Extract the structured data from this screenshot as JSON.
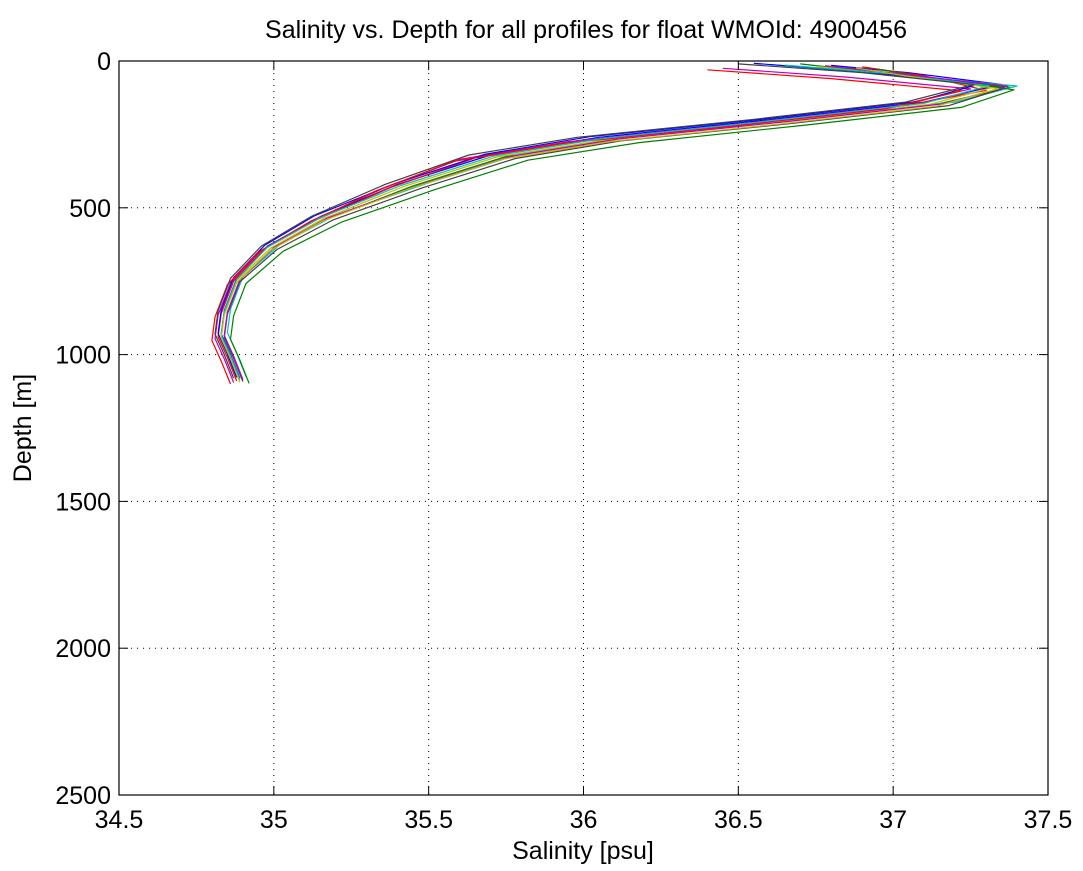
{
  "chart_data": {
    "type": "line",
    "title": "Salinity vs. Depth for all profiles for float WMOId: 4900456",
    "xlabel": "Salinity [psu]",
    "ylabel": "Depth [m]",
    "xlim": [
      34.5,
      37.5
    ],
    "ylim": [
      0,
      2500
    ],
    "y_axis_reversed": true,
    "grid": true,
    "legend": "none",
    "x_ticks": [
      "34.5",
      "35",
      "35.5",
      "36",
      "36.5",
      "37",
      "37.5"
    ],
    "y_ticks": [
      "0",
      "500",
      "1000",
      "1500",
      "2000",
      "2500"
    ],
    "line_colors": [
      "#0000ff",
      "#008000",
      "#ff0000",
      "#00bfbf",
      "#bf00bf",
      "#bfbf00",
      "#404040"
    ],
    "series": [
      {
        "values": [
          [
            36.8,
            15
          ],
          [
            37.05,
            40
          ],
          [
            37.35,
            80
          ],
          [
            37.1,
            140
          ],
          [
            36.6,
            200
          ],
          [
            36.05,
            260
          ],
          [
            35.7,
            320
          ],
          [
            35.4,
            420
          ],
          [
            35.15,
            530
          ],
          [
            34.98,
            630
          ],
          [
            34.88,
            740
          ],
          [
            34.84,
            850
          ],
          [
            34.83,
            930
          ],
          [
            34.86,
            1000
          ],
          [
            34.89,
            1080
          ]
        ]
      },
      {
        "values": [
          [
            36.7,
            10
          ],
          [
            37.0,
            45
          ],
          [
            37.38,
            90
          ],
          [
            37.15,
            145
          ],
          [
            36.65,
            205
          ],
          [
            36.1,
            265
          ],
          [
            35.75,
            325
          ],
          [
            35.45,
            425
          ],
          [
            35.18,
            535
          ],
          [
            35.0,
            635
          ],
          [
            34.89,
            745
          ],
          [
            34.85,
            855
          ],
          [
            34.84,
            935
          ],
          [
            34.87,
            1005
          ],
          [
            34.9,
            1085
          ]
        ]
      },
      {
        "values": [
          [
            36.9,
            20
          ],
          [
            37.1,
            50
          ],
          [
            37.3,
            100
          ],
          [
            37.05,
            150
          ],
          [
            36.55,
            210
          ],
          [
            36.0,
            270
          ],
          [
            35.65,
            330
          ],
          [
            35.38,
            430
          ],
          [
            35.14,
            540
          ],
          [
            34.97,
            640
          ],
          [
            34.87,
            750
          ],
          [
            34.83,
            860
          ],
          [
            34.82,
            940
          ],
          [
            34.85,
            1010
          ],
          [
            34.88,
            1090
          ]
        ]
      },
      {
        "values": [
          [
            36.6,
            12
          ],
          [
            36.95,
            42
          ],
          [
            37.4,
            85
          ],
          [
            37.2,
            140
          ],
          [
            36.7,
            195
          ],
          [
            36.15,
            255
          ],
          [
            35.8,
            315
          ],
          [
            35.5,
            415
          ],
          [
            35.2,
            525
          ],
          [
            35.02,
            625
          ],
          [
            34.9,
            735
          ],
          [
            34.86,
            845
          ],
          [
            34.85,
            925
          ],
          [
            34.88,
            995
          ],
          [
            34.91,
            1075
          ]
        ]
      },
      {
        "values": [
          [
            36.45,
            25
          ],
          [
            36.85,
            55
          ],
          [
            37.25,
            95
          ],
          [
            37.0,
            155
          ],
          [
            36.5,
            215
          ],
          [
            35.95,
            275
          ],
          [
            35.6,
            335
          ],
          [
            35.35,
            435
          ],
          [
            35.12,
            545
          ],
          [
            34.96,
            645
          ],
          [
            34.86,
            755
          ],
          [
            34.82,
            865
          ],
          [
            34.81,
            945
          ],
          [
            34.84,
            1015
          ],
          [
            34.87,
            1095
          ]
        ]
      },
      {
        "values": [
          [
            36.75,
            18
          ],
          [
            37.02,
            48
          ],
          [
            37.33,
            88
          ],
          [
            37.12,
            147
          ],
          [
            36.62,
            207
          ],
          [
            36.08,
            267
          ],
          [
            35.72,
            327
          ],
          [
            35.42,
            427
          ],
          [
            35.16,
            537
          ],
          [
            34.99,
            637
          ],
          [
            34.88,
            747
          ],
          [
            34.84,
            857
          ],
          [
            34.83,
            937
          ],
          [
            34.86,
            1007
          ],
          [
            34.89,
            1087
          ]
        ]
      },
      {
        "values": [
          [
            36.85,
            22
          ],
          [
            37.08,
            52
          ],
          [
            37.36,
            92
          ],
          [
            37.18,
            152
          ],
          [
            36.68,
            212
          ],
          [
            36.12,
            272
          ],
          [
            35.78,
            332
          ],
          [
            35.48,
            432
          ],
          [
            35.19,
            542
          ],
          [
            35.01,
            642
          ],
          [
            34.89,
            752
          ],
          [
            34.85,
            862
          ],
          [
            34.84,
            942
          ],
          [
            34.87,
            1012
          ],
          [
            34.9,
            1092
          ]
        ]
      },
      {
        "values": [
          [
            36.55,
            8
          ],
          [
            36.92,
            38
          ],
          [
            37.28,
            78
          ],
          [
            37.08,
            138
          ],
          [
            36.58,
            198
          ],
          [
            36.02,
            258
          ],
          [
            35.68,
            318
          ],
          [
            35.39,
            418
          ],
          [
            35.13,
            528
          ],
          [
            34.97,
            628
          ],
          [
            34.87,
            738
          ],
          [
            34.83,
            848
          ],
          [
            34.82,
            928
          ],
          [
            34.85,
            998
          ],
          [
            34.88,
            1078
          ]
        ]
      },
      {
        "values": [
          [
            36.95,
            28
          ],
          [
            37.12,
            58
          ],
          [
            37.39,
            98
          ],
          [
            37.22,
            158
          ],
          [
            36.72,
            218
          ],
          [
            36.18,
            278
          ],
          [
            35.82,
            338
          ],
          [
            35.52,
            438
          ],
          [
            35.22,
            548
          ],
          [
            35.03,
            648
          ],
          [
            34.91,
            758
          ],
          [
            34.87,
            868
          ],
          [
            34.86,
            948
          ],
          [
            34.89,
            1018
          ],
          [
            34.92,
            1098
          ]
        ]
      },
      {
        "values": [
          [
            36.4,
            30
          ],
          [
            36.8,
            60
          ],
          [
            37.22,
            102
          ],
          [
            36.98,
            162
          ],
          [
            36.48,
            222
          ],
          [
            35.92,
            282
          ],
          [
            35.58,
            342
          ],
          [
            35.33,
            442
          ],
          [
            35.11,
            552
          ],
          [
            34.95,
            652
          ],
          [
            34.85,
            762
          ],
          [
            34.81,
            872
          ],
          [
            34.8,
            952
          ],
          [
            34.83,
            1022
          ],
          [
            34.86,
            1100
          ]
        ]
      },
      {
        "values": [
          [
            36.65,
            14
          ],
          [
            37.0,
            44
          ],
          [
            37.31,
            84
          ],
          [
            37.1,
            144
          ],
          [
            36.6,
            204
          ],
          [
            36.06,
            264
          ],
          [
            35.71,
            324
          ],
          [
            35.41,
            424
          ],
          [
            35.15,
            534
          ],
          [
            34.98,
            634
          ],
          [
            34.88,
            744
          ],
          [
            34.84,
            854
          ],
          [
            34.83,
            934
          ],
          [
            34.86,
            1004
          ],
          [
            34.89,
            1084
          ]
        ]
      },
      {
        "values": [
          [
            36.78,
            16
          ],
          [
            37.04,
            46
          ],
          [
            37.37,
            86
          ],
          [
            37.16,
            146
          ],
          [
            36.66,
            206
          ],
          [
            36.11,
            266
          ],
          [
            35.76,
            326
          ],
          [
            35.46,
            426
          ],
          [
            35.17,
            536
          ],
          [
            35.0,
            636
          ],
          [
            34.89,
            746
          ],
          [
            34.85,
            856
          ],
          [
            34.84,
            936
          ],
          [
            34.87,
            1006
          ],
          [
            34.9,
            1086
          ]
        ]
      },
      {
        "values": [
          [
            36.88,
            24
          ],
          [
            37.06,
            54
          ],
          [
            37.34,
            94
          ],
          [
            37.14,
            154
          ],
          [
            36.64,
            214
          ],
          [
            36.09,
            274
          ],
          [
            35.74,
            334
          ],
          [
            35.44,
            434
          ],
          [
            35.16,
            544
          ],
          [
            34.99,
            644
          ],
          [
            34.88,
            754
          ],
          [
            34.84,
            864
          ],
          [
            34.83,
            944
          ],
          [
            34.86,
            1014
          ],
          [
            34.89,
            1094
          ]
        ]
      },
      {
        "values": [
          [
            36.5,
            10
          ],
          [
            36.9,
            40
          ],
          [
            37.26,
            80
          ],
          [
            37.04,
            140
          ],
          [
            36.54,
            200
          ],
          [
            35.98,
            260
          ],
          [
            35.63,
            320
          ],
          [
            35.36,
            420
          ],
          [
            35.12,
            530
          ],
          [
            34.96,
            630
          ],
          [
            34.86,
            740
          ],
          [
            34.82,
            850
          ],
          [
            34.81,
            930
          ],
          [
            34.84,
            1000
          ],
          [
            34.87,
            1080
          ]
        ]
      }
    ]
  }
}
